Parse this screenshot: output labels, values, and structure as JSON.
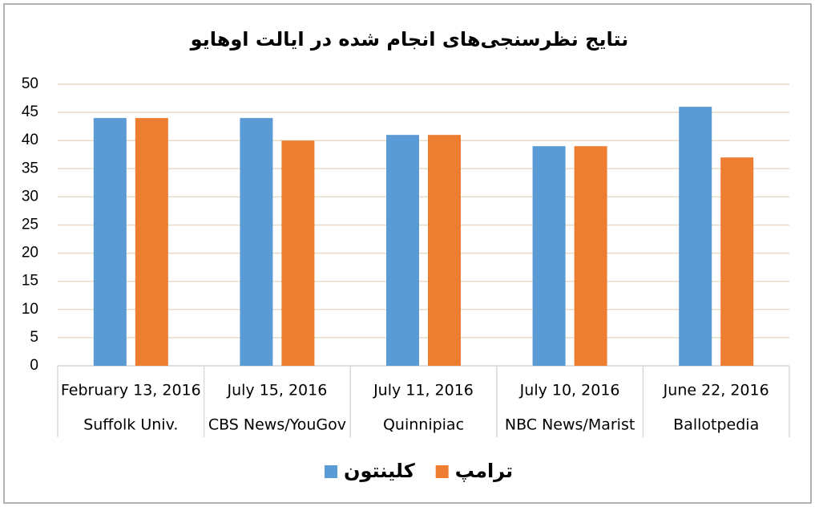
{
  "chart_data": {
    "type": "bar",
    "title": "نتایج نظرسنجی‌های انجام شده در ایالت اوهایو",
    "categories": [
      "February 13, 2016",
      "July 15, 2016",
      "July 11, 2016",
      "July 10, 2016",
      "June 22, 2016"
    ],
    "category_sources": [
      "Suffolk Univ.",
      "CBS News/YouGov",
      "Quinnipiac",
      "NBC News/Marist",
      "Ballotpedia"
    ],
    "series": [
      {
        "name": "کلینتون",
        "color": "#5b9bd5",
        "values": [
          44,
          44,
          41,
          39,
          46
        ]
      },
      {
        "name": "ترامپ",
        "color": "#ed7d31",
        "values": [
          44,
          40,
          41,
          39,
          37
        ]
      }
    ],
    "ylim": [
      0,
      50
    ],
    "yticks": [
      0,
      5,
      10,
      15,
      20,
      25,
      30,
      35,
      40,
      45,
      50
    ],
    "grid": true,
    "legend": "bottom"
  }
}
